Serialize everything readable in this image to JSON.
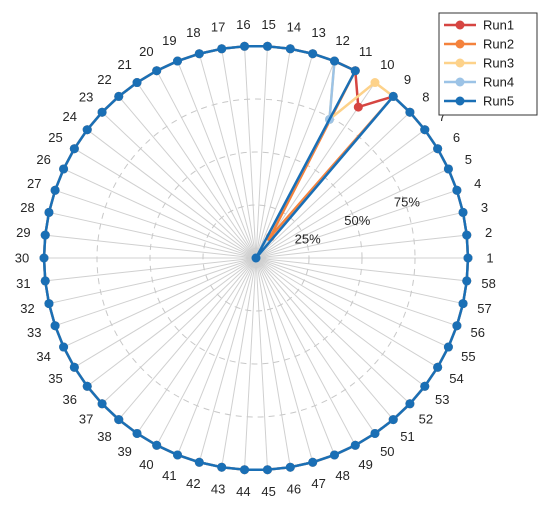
{
  "chart_data": {
    "type": "radar",
    "categories": [
      "1",
      "2",
      "3",
      "4",
      "5",
      "6",
      "7",
      "8",
      "9",
      "10",
      "11",
      "12",
      "13",
      "14",
      "15",
      "16",
      "17",
      "18",
      "19",
      "20",
      "21",
      "22",
      "23",
      "24",
      "25",
      "26",
      "27",
      "28",
      "29",
      "30",
      "31",
      "32",
      "33",
      "34",
      "35",
      "36",
      "37",
      "38",
      "39",
      "40",
      "41",
      "42",
      "43",
      "44",
      "45",
      "46",
      "47",
      "48",
      "49",
      "50",
      "51",
      "52",
      "53",
      "54",
      "55",
      "56",
      "57",
      "58"
    ],
    "ring_labels": [
      "25%",
      "50%",
      "75%"
    ],
    "rmax": 1,
    "series": [
      {
        "name": "Run1",
        "color": "#d64541",
        "values": [
          1,
          1,
          1,
          1,
          1,
          1,
          1,
          1,
          1,
          0.86,
          1,
          1,
          1,
          1,
          1,
          1,
          1,
          1,
          1,
          1,
          1,
          1,
          1,
          1,
          1,
          1,
          1,
          1,
          1,
          1,
          1,
          1,
          1,
          1,
          1,
          1,
          1,
          1,
          1,
          1,
          1,
          1,
          1,
          1,
          1,
          1,
          1,
          1,
          1,
          1,
          1,
          1,
          1,
          1,
          1,
          1,
          1,
          1
        ]
      },
      {
        "name": "Run2",
        "color": "#f4823c",
        "values": [
          1,
          1,
          1,
          1,
          1,
          1,
          1,
          1,
          1,
          0.12,
          1,
          1,
          1,
          1,
          1,
          1,
          1,
          1,
          1,
          1,
          1,
          1,
          1,
          1,
          1,
          1,
          1,
          1,
          1,
          1,
          1,
          1,
          1,
          1,
          1,
          1,
          1,
          1,
          1,
          1,
          1,
          1,
          1,
          1,
          1,
          1,
          1,
          1,
          1,
          1,
          1,
          1,
          1,
          1,
          1,
          1,
          1,
          1
        ]
      },
      {
        "name": "Run3",
        "color": "#fdd28a",
        "values": [
          1,
          1,
          1,
          1,
          1,
          1,
          1,
          1,
          1,
          1,
          0.74,
          1,
          1,
          1,
          1,
          1,
          1,
          1,
          1,
          1,
          1,
          1,
          1,
          1,
          1,
          1,
          1,
          1,
          1,
          1,
          1,
          1,
          1,
          1,
          1,
          1,
          1,
          1,
          1,
          1,
          1,
          1,
          1,
          1,
          1,
          1,
          1,
          1,
          1,
          1,
          1,
          1,
          1,
          1,
          1,
          1,
          1,
          1
        ]
      },
      {
        "name": "Run4",
        "color": "#9cc3e6",
        "values": [
          1,
          1,
          1,
          1,
          1,
          1,
          1,
          1,
          1,
          0,
          0.74,
          1,
          1,
          1,
          1,
          1,
          1,
          1,
          1,
          1,
          1,
          1,
          1,
          1,
          1,
          1,
          1,
          1,
          1,
          1,
          1,
          1,
          1,
          1,
          1,
          1,
          1,
          1,
          1,
          1,
          1,
          1,
          1,
          1,
          1,
          1,
          1,
          1,
          1,
          1,
          1,
          1,
          1,
          1,
          1,
          1,
          1,
          1
        ]
      },
      {
        "name": "Run5",
        "color": "#1a6fb5",
        "values": [
          1,
          1,
          1,
          1,
          1,
          1,
          1,
          1,
          1,
          0,
          1,
          1,
          1,
          1,
          1,
          1,
          1,
          1,
          1,
          1,
          1,
          1,
          1,
          1,
          1,
          1,
          1,
          1,
          1,
          1,
          1,
          1,
          1,
          1,
          1,
          1,
          1,
          1,
          1,
          1,
          1,
          1,
          1,
          1,
          1,
          1,
          1,
          1,
          1,
          1,
          1,
          1,
          1,
          1,
          1,
          1,
          1,
          1
        ]
      }
    ],
    "grid": true,
    "legend_position": "top-right"
  }
}
